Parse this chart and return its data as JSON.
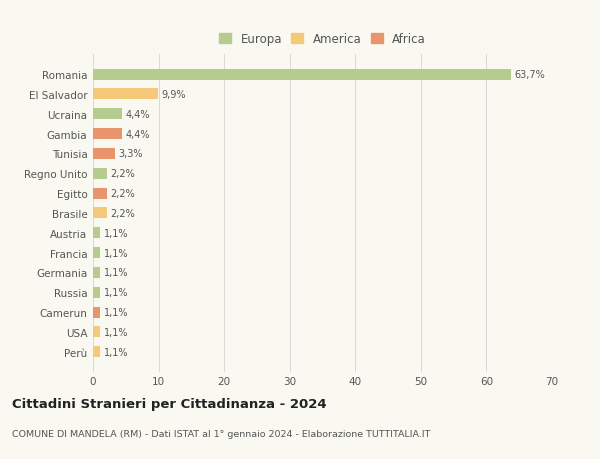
{
  "categories": [
    "Perù",
    "USA",
    "Camerun",
    "Russia",
    "Germania",
    "Francia",
    "Austria",
    "Brasile",
    "Egitto",
    "Regno Unito",
    "Tunisia",
    "Gambia",
    "Ucraina",
    "El Salvador",
    "Romania"
  ],
  "values": [
    1.1,
    1.1,
    1.1,
    1.1,
    1.1,
    1.1,
    1.1,
    2.2,
    2.2,
    2.2,
    3.3,
    4.4,
    4.4,
    9.9,
    63.7
  ],
  "colors": [
    "#f5c97a",
    "#f5c97a",
    "#e8956d",
    "#b5cc8e",
    "#b5cc8e",
    "#b5cc8e",
    "#b5cc8e",
    "#f5c97a",
    "#e8956d",
    "#b5cc8e",
    "#e8956d",
    "#e8956d",
    "#b5cc8e",
    "#f5c97a",
    "#b5cc8e"
  ],
  "labels": [
    "1,1%",
    "1,1%",
    "1,1%",
    "1,1%",
    "1,1%",
    "1,1%",
    "1,1%",
    "2,2%",
    "2,2%",
    "2,2%",
    "3,3%",
    "4,4%",
    "4,4%",
    "9,9%",
    "63,7%"
  ],
  "legend_labels": [
    "Europa",
    "America",
    "Africa"
  ],
  "legend_colors": [
    "#b5cc8e",
    "#f5c97a",
    "#e8956d"
  ],
  "title": "Cittadini Stranieri per Cittadinanza - 2024",
  "subtitle": "COMUNE DI MANDELA (RM) - Dati ISTAT al 1° gennaio 2024 - Elaborazione TUTTITALIA.IT",
  "xlim": [
    0,
    70
  ],
  "xticks": [
    0,
    10,
    20,
    30,
    40,
    50,
    60,
    70
  ],
  "background_color": "#f9f9f2",
  "grid_color": "#d8d8d8",
  "bar_height": 0.55
}
